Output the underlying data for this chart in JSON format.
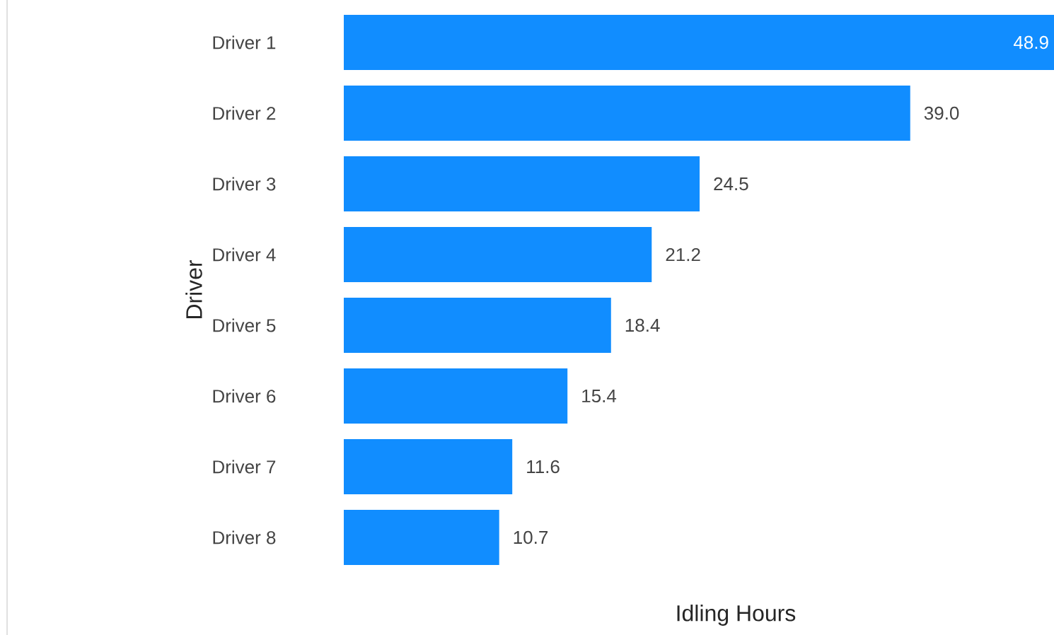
{
  "chart_data": {
    "type": "bar",
    "orientation": "horizontal",
    "xlabel": "Idling Hours",
    "ylabel": "Driver",
    "categories": [
      "Driver 1",
      "Driver 2",
      "Driver 3",
      "Driver 4",
      "Driver 5",
      "Driver 6",
      "Driver 7",
      "Driver 8"
    ],
    "values": [
      48.9,
      39.0,
      24.5,
      21.2,
      18.4,
      15.4,
      11.6,
      10.7
    ],
    "value_labels": [
      "48.9",
      "39.0",
      "24.5",
      "21.2",
      "18.4",
      "15.4",
      "11.6",
      "10.7"
    ],
    "color": "#118dff"
  }
}
